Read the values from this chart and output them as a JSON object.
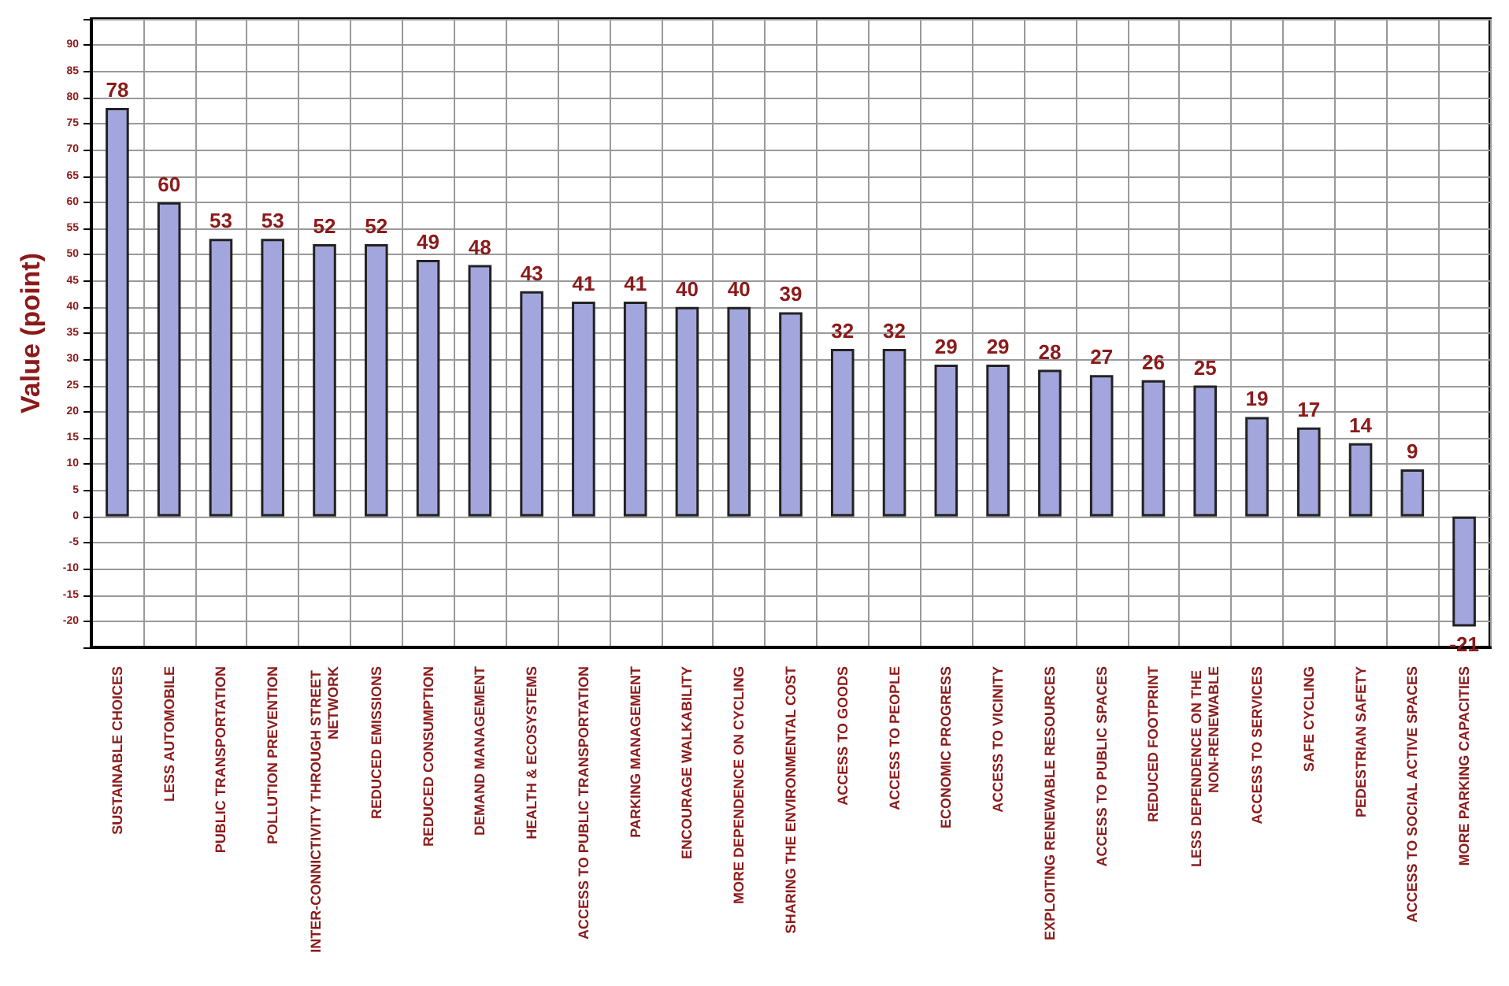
{
  "chart_data": {
    "type": "bar",
    "ylabel": "Value (point)",
    "categories": [
      "SUSTAINABLE CHOICES",
      "LESS AUTOMOBILE",
      "PUBLIC TRANSPORTATION",
      "POLLUTION PREVENTION",
      "INTER-CONNICTIVITY THROUGH STREET NETWORK",
      "REDUCED EMISSIONS",
      "REDUCED CONSUMPTION",
      "DEMAND MANAGEMENT",
      "HEALTH & ECOSYSTEMS",
      "ACCESS TO PUBLIC TRANSPORTATION",
      "PARKING MANAGEMENT",
      "ENCOURAGE WALKABILITY",
      "MORE DEPENDENCE ON CYCLING",
      "SHARING THE ENVIRONMENTAL COST",
      "ACCESS TO GOODS",
      "ACCESS TO PEOPLE",
      "ECONOMIC PROGRESS",
      "ACCESS TO VICINITY",
      "EXPLOITING RENEWABLE RESOURCES",
      "ACCESS TO PUBLIC SPACES",
      "REDUCED FOOTPRINT",
      "LESS DEPENDENCE ON THE NON-RENEWABLE",
      "ACCESS TO SERVICES",
      "SAFE CYCLING",
      "PEDESTRIAN SAFETY",
      "ACCESS TO SOCIAL ACTIVE SPACES",
      "MORE PARKING CAPACITIES"
    ],
    "values": [
      78,
      60,
      53,
      53,
      52,
      52,
      49,
      48,
      43,
      41,
      41,
      40,
      40,
      39,
      32,
      32,
      29,
      29,
      28,
      27,
      26,
      25,
      19,
      17,
      14,
      9,
      -21
    ],
    "color": "#a3a6dc",
    "data_labels": true,
    "grid": true,
    "ylim": [
      -25,
      95
    ],
    "yticks": [
      {
        "value": -25,
        "label": null
      },
      -20,
      -15,
      -10,
      -5,
      0,
      5,
      10,
      15,
      20,
      25,
      30,
      35,
      40,
      45,
      50,
      55,
      60,
      65,
      70,
      75,
      80,
      85,
      90,
      {
        "value": 95,
        "label": null
      }
    ]
  }
}
